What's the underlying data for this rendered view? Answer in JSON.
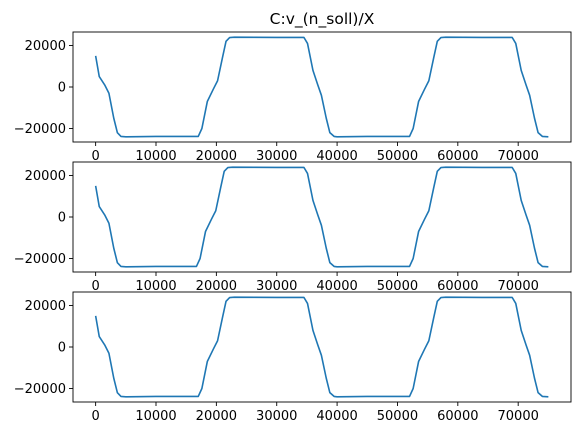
{
  "title": "C:v_(n_soll)/X",
  "style": {
    "line_color": "#1f77b4",
    "axis_color": "#000000",
    "background": "#ffffff"
  },
  "chart_data": [
    {
      "type": "line",
      "title": "C:v_(n_soll)/X",
      "xlabel": "",
      "ylabel": "",
      "xlim": [
        -3750,
        78750
      ],
      "ylim": [
        -26500,
        26500
      ],
      "xticks": [
        0,
        10000,
        20000,
        30000,
        40000,
        50000,
        60000,
        70000
      ],
      "xtick_labels": [
        "0",
        "10000",
        "20000",
        "30000",
        "40000",
        "50000",
        "60000",
        "70000"
      ],
      "yticks": [
        -20000,
        0,
        20000
      ],
      "ytick_labels": [
        "−20000",
        "0",
        "20000"
      ],
      "grid": false,
      "series": [
        {
          "x": [
            0,
            600,
            1500,
            2200,
            3000,
            3600,
            4200,
            5000,
            10000,
            17000,
            17600,
            18500,
            19500,
            20200,
            21000,
            21600,
            22200,
            23000,
            30000,
            34500,
            35100,
            36000,
            36800,
            37400,
            38200,
            38800,
            39500,
            40000,
            45000,
            52000,
            52600,
            53500,
            54500,
            55200,
            56000,
            56600,
            57200,
            58000,
            64000,
            69000,
            69600,
            70500,
            71300,
            71900,
            72700,
            73300,
            74000,
            75000
          ],
          "y": [
            15000,
            5000,
            1000,
            -3000,
            -15000,
            -22000,
            -23800,
            -24000,
            -23800,
            -23800,
            -20000,
            -7000,
            -1000,
            3000,
            14000,
            22000,
            23800,
            24000,
            23900,
            23900,
            21000,
            8000,
            1000,
            -4000,
            -15000,
            -22000,
            -23800,
            -24000,
            -23800,
            -23800,
            -20000,
            -7000,
            -1000,
            3000,
            14000,
            22000,
            23800,
            24000,
            23900,
            23900,
            21000,
            8000,
            1000,
            -4000,
            -15000,
            -22000,
            -23800,
            -24000
          ]
        }
      ]
    },
    {
      "type": "line",
      "title": "",
      "xlabel": "",
      "ylabel": "",
      "xlim": [
        -3750,
        78750
      ],
      "ylim": [
        -26500,
        26500
      ],
      "xticks": [
        0,
        10000,
        20000,
        30000,
        40000,
        50000,
        60000,
        70000
      ],
      "xtick_labels": [
        "0",
        "10000",
        "20000",
        "30000",
        "40000",
        "50000",
        "60000",
        "70000"
      ],
      "yticks": [
        -20000,
        0,
        20000
      ],
      "ytick_labels": [
        "−20000",
        "0",
        "20000"
      ],
      "grid": false,
      "series": [
        {
          "x": [
            0,
            600,
            1500,
            2200,
            3000,
            3600,
            4200,
            5000,
            10000,
            16700,
            17300,
            18200,
            19200,
            19900,
            20700,
            21300,
            21900,
            22700,
            30000,
            34500,
            35100,
            36000,
            36800,
            37400,
            38200,
            38800,
            39500,
            40000,
            45000,
            52000,
            52600,
            53500,
            54500,
            55200,
            56000,
            56600,
            57200,
            58000,
            64000,
            69000,
            69600,
            70500,
            71300,
            71900,
            72700,
            73300,
            74000,
            75000
          ],
          "y": [
            15000,
            5000,
            1000,
            -3000,
            -15000,
            -22000,
            -23800,
            -24000,
            -23800,
            -23800,
            -20000,
            -7000,
            -1000,
            3000,
            14000,
            22000,
            23800,
            24000,
            23900,
            23900,
            21000,
            8000,
            1000,
            -4000,
            -15000,
            -22000,
            -23800,
            -24000,
            -23800,
            -23800,
            -20000,
            -7000,
            -1000,
            3000,
            14000,
            22000,
            23800,
            24000,
            23900,
            23900,
            21000,
            8000,
            1000,
            -4000,
            -15000,
            -22000,
            -23800,
            -24000
          ]
        }
      ]
    },
    {
      "type": "line",
      "title": "",
      "xlabel": "",
      "ylabel": "",
      "xlim": [
        -3750,
        78750
      ],
      "ylim": [
        -26500,
        26500
      ],
      "xticks": [
        0,
        10000,
        20000,
        30000,
        40000,
        50000,
        60000,
        70000
      ],
      "xtick_labels": [
        "0",
        "10000",
        "20000",
        "30000",
        "40000",
        "50000",
        "60000",
        "70000"
      ],
      "yticks": [
        -20000,
        0,
        20000
      ],
      "ytick_labels": [
        "−20000",
        "0",
        "20000"
      ],
      "grid": false,
      "series": [
        {
          "x": [
            0,
            600,
            1500,
            2200,
            3000,
            3600,
            4200,
            5000,
            10000,
            17000,
            17600,
            18500,
            19500,
            20200,
            21000,
            21600,
            22200,
            23000,
            30000,
            34500,
            35100,
            36000,
            36800,
            37400,
            38200,
            38800,
            39500,
            40000,
            45000,
            52000,
            52600,
            53500,
            54500,
            55200,
            56000,
            56600,
            57200,
            58000,
            64000,
            69000,
            69600,
            70500,
            71300,
            71900,
            72700,
            73300,
            74000,
            75000
          ],
          "y": [
            15000,
            5000,
            1000,
            -3000,
            -15000,
            -22000,
            -23800,
            -24000,
            -23800,
            -23800,
            -20000,
            -7000,
            -1000,
            3000,
            14000,
            22000,
            23800,
            24000,
            23900,
            23900,
            21000,
            8000,
            1000,
            -4000,
            -15000,
            -22000,
            -23800,
            -24000,
            -23800,
            -23800,
            -20000,
            -7000,
            -1000,
            3000,
            14000,
            22000,
            23800,
            24000,
            23900,
            23900,
            21000,
            8000,
            1000,
            -4000,
            -15000,
            -22000,
            -23800,
            -24000
          ]
        }
      ]
    }
  ]
}
